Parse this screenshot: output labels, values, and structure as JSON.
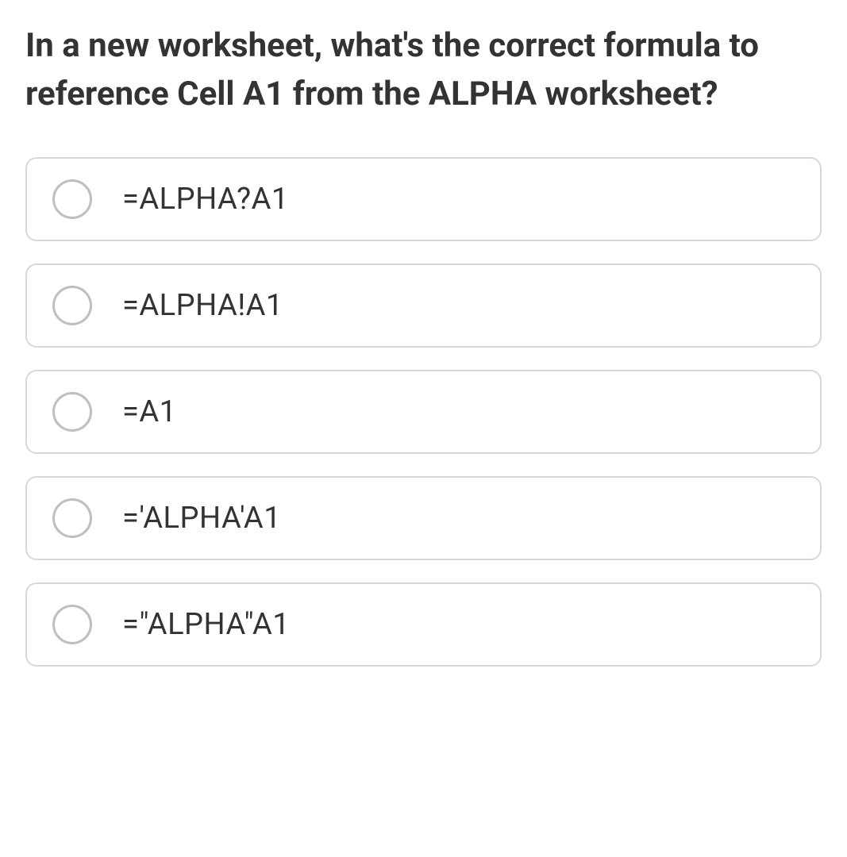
{
  "question": {
    "title": "In a new worksheet, what's the correct formula to reference Cell A1 from the ALPHA worksheet?",
    "title_fontsize": 42,
    "title_fontweight": 700,
    "title_color": "#333333"
  },
  "options": [
    {
      "label": "=ALPHA?A1",
      "selected": false
    },
    {
      "label": "=ALPHA!A1",
      "selected": false
    },
    {
      "label": "=A1",
      "selected": false
    },
    {
      "label": "='ALPHA'A1",
      "selected": false
    },
    {
      "label": "=\"ALPHA\"A1",
      "selected": false
    }
  ],
  "styling": {
    "background_color": "#ffffff",
    "option_border_color": "#d8d8d8",
    "option_border_radius": 14,
    "radio_border_color": "#bfbfbf",
    "radio_size": 50,
    "option_fontsize": 38,
    "option_color": "#333333",
    "option_gap": 28
  }
}
